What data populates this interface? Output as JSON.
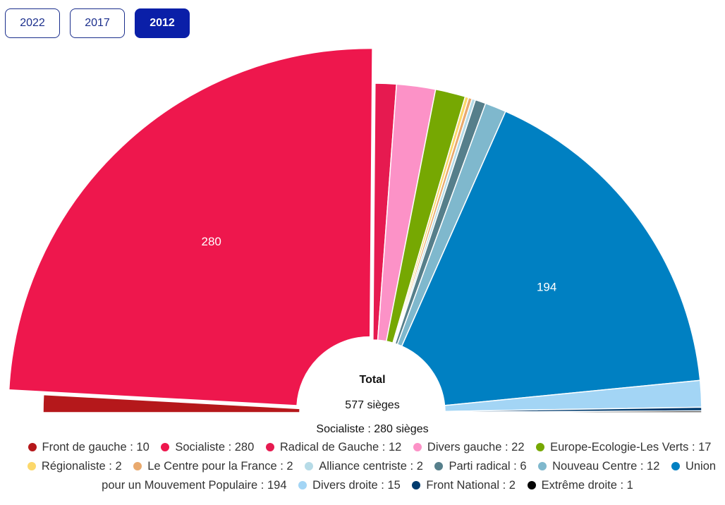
{
  "tabs": [
    {
      "label": "2022",
      "active": false
    },
    {
      "label": "2017",
      "active": false
    },
    {
      "label": "2012",
      "active": true
    }
  ],
  "chart_data": {
    "type": "pie",
    "variant": "semi-donut",
    "center_label": {
      "title": "Total",
      "total": "577 sièges"
    },
    "hover_label": "Socialiste : 280 sièges",
    "categories": [
      "Front de gauche",
      "Socialiste",
      "Radical de Gauche",
      "Divers gauche",
      "Europe-Ecologie-Les Verts",
      "Régionaliste",
      "Le Centre pour la France",
      "Alliance centriste",
      "Parti radical",
      "Nouveau Centre",
      "Union pour un Mouvement Populaire",
      "Divers droite",
      "Front National",
      "Extrême droite"
    ],
    "values": [
      10,
      280,
      12,
      22,
      17,
      2,
      2,
      2,
      6,
      12,
      194,
      15,
      2,
      1
    ],
    "colors": [
      "#b5181b",
      "#ee174d",
      "#e61a50",
      "#fc92c7",
      "#76a802",
      "#fcd86b",
      "#e9a96d",
      "#b6dbe7",
      "#567f8b",
      "#7fb8cd",
      "#0080c2",
      "#a3d5f5",
      "#003b6e",
      "#060606"
    ],
    "data_labels": {
      "Socialiste": "280",
      "Union pour un Mouvement Populaire": "194"
    },
    "highlighted": "Socialiste",
    "legend": [
      "Front de gauche : 10",
      "Socialiste : 280",
      "Radical de Gauche : 12",
      "Divers gauche : 22",
      "Europe-Ecologie-Les Verts : 17",
      "Régionaliste : 2",
      "Le Centre pour la France : 2",
      "Alliance centriste : 2",
      "Parti radical : 6",
      "Nouveau Centre : 12",
      "Union pour un Mouvement Populaire : 194",
      "Divers droite : 15",
      "Front National : 2",
      "Extrême droite : 1"
    ],
    "legend_placement": "bottom"
  }
}
